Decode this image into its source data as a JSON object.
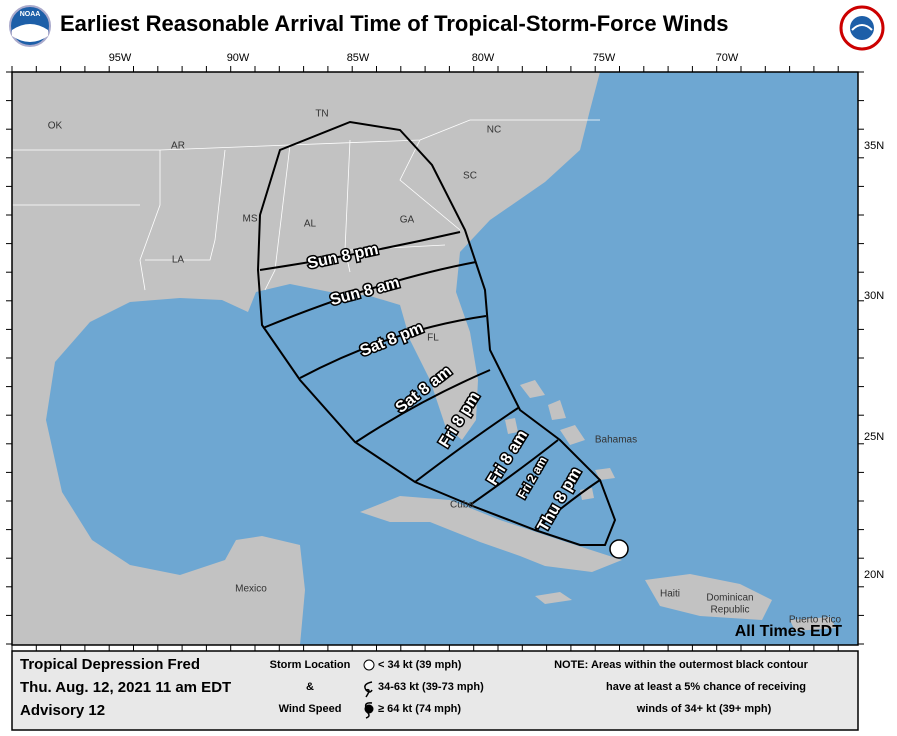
{
  "header": {
    "title": "Earliest Reasonable Arrival Time of Tropical-Storm-Force Winds",
    "logo_left": "NOAA"
  },
  "map": {
    "lon_labels": [
      "95W",
      "90W",
      "85W",
      "80W",
      "75W",
      "70W"
    ],
    "lat_labels": [
      "35N",
      "30N",
      "25N",
      "20N"
    ],
    "state_labels": [
      "OK",
      "AR",
      "TN",
      "NC",
      "SC",
      "GA",
      "AL",
      "MS",
      "LA",
      "FL"
    ],
    "place_labels": [
      "Bahamas",
      "Cuba",
      "Mexico",
      "Haiti",
      "Dominican",
      "Republic",
      "Puerto Rico"
    ],
    "contour_labels": [
      "Sun  8  pm",
      "Sun  8  am",
      "Sat  8  pm",
      "Sat  8  am",
      "Fri  8  pm",
      "Fri  8  am",
      "Fri  2  am",
      "Thu  8  pm"
    ],
    "times_note": "All Times EDT"
  },
  "legend": {
    "storm_name": "Tropical Depression Fred",
    "issue_time": "Thu. Aug. 12, 2021  11 am EDT",
    "advisory": "Advisory 12",
    "key_heading": [
      "Storm Location",
      "&",
      "Wind Speed"
    ],
    "key_items": [
      "< 34 kt (39 mph)",
      "34-63 kt (39-73 mph)",
      "≥ 64 kt (74 mph)"
    ],
    "note": [
      "NOTE: Areas within the outermost black contour",
      "have at least a 5% chance of receiving",
      "winds of 34+ kt (39+ mph)"
    ]
  }
}
